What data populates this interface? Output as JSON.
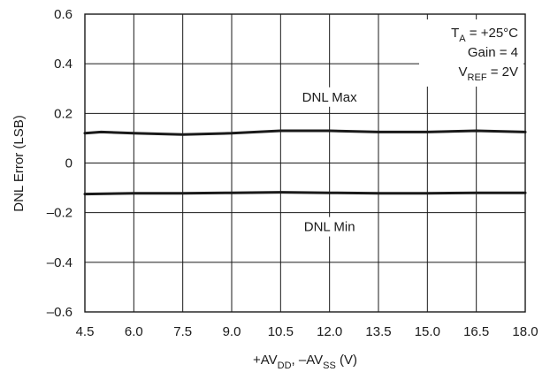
{
  "chart_data": {
    "type": "line",
    "xlabel": {
      "pre": "+AV",
      "sub1": "DD",
      "mid": ", –AV",
      "sub2": "SS",
      "post": " (V)"
    },
    "ylabel": "DNL Error (LSB)",
    "xlim": [
      4.5,
      18.0
    ],
    "ylim": [
      -0.6,
      0.6
    ],
    "grid": true,
    "x_ticks": [
      4.5,
      6.0,
      7.5,
      9.0,
      10.5,
      12.0,
      13.5,
      15.0,
      16.5,
      18.0
    ],
    "x_tick_labels": [
      "4.5",
      "6.0",
      "7.5",
      "9.0",
      "10.5",
      "12.0",
      "13.5",
      "15.0",
      "16.5",
      "18.0"
    ],
    "y_ticks": [
      -0.6,
      -0.4,
      -0.2,
      0,
      0.2,
      0.4,
      0.6
    ],
    "y_tick_labels": [
      "–0.6",
      "–0.4",
      "–0.2",
      "0",
      "0.2",
      "0.4",
      "0.6"
    ],
    "conditions": {
      "ta": {
        "pre": "T",
        "sub": "A",
        "post": " = +25°C"
      },
      "gain": "Gain = 4",
      "vref": {
        "pre": "V",
        "sub": "REF",
        "post": " = 2V"
      }
    },
    "series": [
      {
        "name": "DNL Max",
        "color": "#1a1a1a",
        "x": [
          4.5,
          5.0,
          6.0,
          7.5,
          9.0,
          10.5,
          12.0,
          13.5,
          15.0,
          16.5,
          18.0
        ],
        "y": [
          0.12,
          0.125,
          0.12,
          0.115,
          0.12,
          0.13,
          0.13,
          0.125,
          0.125,
          0.13,
          0.125
        ]
      },
      {
        "name": "DNL Min",
        "color": "#1a1a1a",
        "x": [
          4.5,
          6.0,
          7.5,
          9.0,
          10.5,
          12.0,
          13.5,
          15.0,
          16.5,
          18.0
        ],
        "y": [
          -0.125,
          -0.122,
          -0.122,
          -0.12,
          -0.118,
          -0.12,
          -0.122,
          -0.122,
          -0.12,
          -0.12
        ]
      }
    ]
  }
}
